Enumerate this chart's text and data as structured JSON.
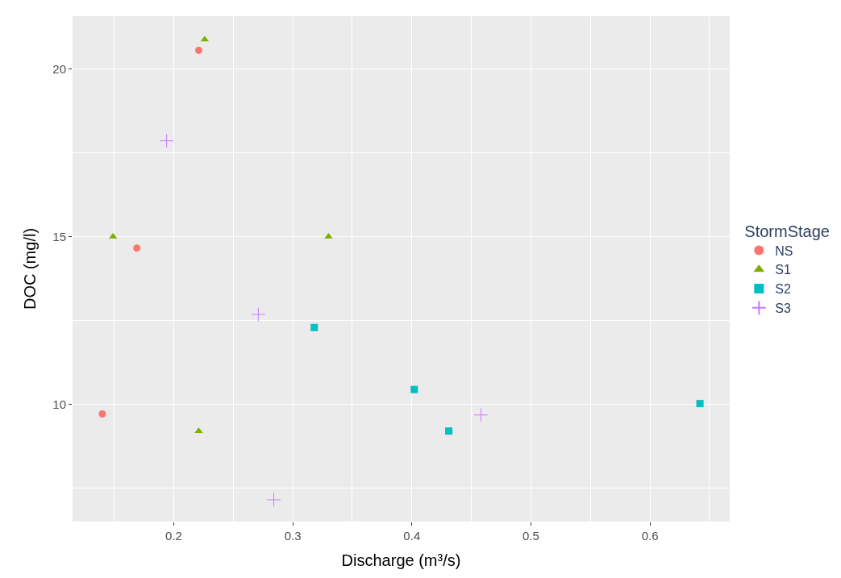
{
  "chart_data": {
    "type": "scatter",
    "xlabel": "Discharge (m³/s)",
    "ylabel": "DOC (mg/l)",
    "legend_title": "StormStage",
    "legend": "right",
    "grid": true,
    "xlim": [
      0.115,
      0.667
    ],
    "ylim": [
      6.5,
      21.58
    ],
    "xticks": [
      0.2,
      0.3,
      0.4,
      0.5,
      0.6
    ],
    "yticks": [
      10,
      15,
      20
    ],
    "series": [
      {
        "name": "NS",
        "color": "#f8766d",
        "marker": "circle",
        "x": [
          0.221,
          0.169,
          0.14
        ],
        "values": [
          20.56,
          14.66,
          9.71
        ]
      },
      {
        "name": "S1",
        "color": "#7cae00",
        "marker": "triangle",
        "x": [
          0.226,
          0.149,
          0.33,
          0.221
        ],
        "values": [
          20.88,
          15.0,
          15.0,
          9.2
        ]
      },
      {
        "name": "S2",
        "color": "#00bfc4",
        "marker": "square",
        "x": [
          0.318,
          0.402,
          0.431,
          0.642
        ],
        "values": [
          12.29,
          10.44,
          9.2,
          10.02
        ]
      },
      {
        "name": "S3",
        "color": "#c77cff",
        "marker": "cross",
        "x": [
          0.194,
          0.271,
          0.284,
          0.458
        ],
        "values": [
          17.86,
          12.68,
          7.15,
          9.68
        ]
      }
    ]
  }
}
